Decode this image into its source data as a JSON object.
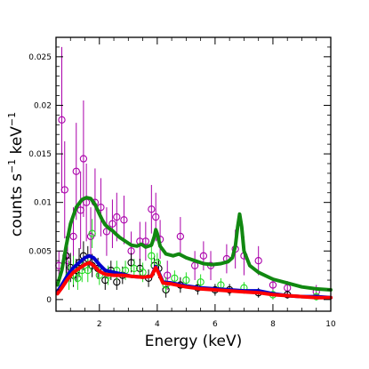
{
  "chart_data": {
    "type": "scatter",
    "title": "",
    "xlabel": "Energy (keV)",
    "ylabel": {
      "base": "counts s",
      "exp1": "−1",
      "mid": " keV",
      "exp2": "−1"
    },
    "xlim": [
      0.5,
      10
    ],
    "ylim": [
      -0.0012,
      0.027
    ],
    "x_ticks": [
      {
        "value": 2,
        "label": "2"
      },
      {
        "value": 4,
        "label": "4"
      },
      {
        "value": 6,
        "label": "6"
      },
      {
        "value": 8,
        "label": "8"
      },
      {
        "value": 10,
        "label": "10"
      }
    ],
    "y_ticks": [
      {
        "value": 0,
        "label": "0"
      },
      {
        "value": 0.005,
        "label": "0.005"
      },
      {
        "value": 0.01,
        "label": "0.01"
      },
      {
        "value": 0.015,
        "label": "0.015"
      },
      {
        "value": 0.02,
        "label": "0.02"
      },
      {
        "value": 0.025,
        "label": "0.025"
      }
    ],
    "grid": false,
    "legend": "none",
    "data_series": [
      {
        "color": "#aa00aa",
        "marker": "open-circle",
        "points": [
          {
            "x": 0.6,
            "y": 0.0035,
            "e": 0.0015
          },
          {
            "x": 0.7,
            "y": 0.0185,
            "e": 0.0075
          },
          {
            "x": 0.8,
            "y": 0.0113,
            "e": 0.005
          },
          {
            "x": 0.9,
            "y": 0.004,
            "e": 0.002
          },
          {
            "x": 1.1,
            "y": 0.0065,
            "e": 0.003
          },
          {
            "x": 1.2,
            "y": 0.0132,
            "e": 0.005
          },
          {
            "x": 1.35,
            "y": 0.0092,
            "e": 0.004
          },
          {
            "x": 1.45,
            "y": 0.0145,
            "e": 0.006
          },
          {
            "x": 1.55,
            "y": 0.01,
            "e": 0.004
          },
          {
            "x": 1.7,
            "y": 0.0065,
            "e": 0.003
          },
          {
            "x": 1.85,
            "y": 0.01,
            "e": 0.0035
          },
          {
            "x": 2.05,
            "y": 0.0095,
            "e": 0.003
          },
          {
            "x": 2.25,
            "y": 0.007,
            "e": 0.0025
          },
          {
            "x": 2.45,
            "y": 0.0078,
            "e": 0.0025
          },
          {
            "x": 2.6,
            "y": 0.0085,
            "e": 0.0025
          },
          {
            "x": 2.85,
            "y": 0.0082,
            "e": 0.0025
          },
          {
            "x": 3.1,
            "y": 0.005,
            "e": 0.002
          },
          {
            "x": 3.4,
            "y": 0.006,
            "e": 0.002
          },
          {
            "x": 3.6,
            "y": 0.006,
            "e": 0.002
          },
          {
            "x": 3.8,
            "y": 0.0093,
            "e": 0.0025
          },
          {
            "x": 3.95,
            "y": 0.0085,
            "e": 0.0025
          },
          {
            "x": 4.1,
            "y": 0.0062,
            "e": 0.002
          },
          {
            "x": 4.35,
            "y": 0.0025,
            "e": 0.0015
          },
          {
            "x": 4.8,
            "y": 0.0065,
            "e": 0.002
          },
          {
            "x": 5.3,
            "y": 0.0035,
            "e": 0.0015
          },
          {
            "x": 5.6,
            "y": 0.0045,
            "e": 0.0015
          },
          {
            "x": 5.85,
            "y": 0.0035,
            "e": 0.0015
          },
          {
            "x": 6.4,
            "y": 0.0042,
            "e": 0.0015
          },
          {
            "x": 6.7,
            "y": 0.0052,
            "e": 0.002
          },
          {
            "x": 7.0,
            "y": 0.0045,
            "e": 0.002
          },
          {
            "x": 7.5,
            "y": 0.004,
            "e": 0.0015
          },
          {
            "x": 8.0,
            "y": 0.0015,
            "e": 0.0008
          },
          {
            "x": 8.5,
            "y": 0.0012,
            "e": 0.0007
          },
          {
            "x": 9.5,
            "y": 0.0008,
            "e": 0.0007
          }
        ]
      },
      {
        "color": "#000000",
        "marker": "open-circle",
        "points": [
          {
            "x": 0.85,
            "y": 0.0045,
            "e": 0.002
          },
          {
            "x": 1.0,
            "y": 0.0033,
            "e": 0.0015
          },
          {
            "x": 1.1,
            "y": 0.0025,
            "e": 0.0012
          },
          {
            "x": 1.2,
            "y": 0.003,
            "e": 0.0012
          },
          {
            "x": 1.3,
            "y": 0.0038,
            "e": 0.0015
          },
          {
            "x": 1.45,
            "y": 0.0045,
            "e": 0.0015
          },
          {
            "x": 1.6,
            "y": 0.0042,
            "e": 0.0013
          },
          {
            "x": 1.75,
            "y": 0.0035,
            "e": 0.0012
          },
          {
            "x": 1.95,
            "y": 0.0032,
            "e": 0.0011
          },
          {
            "x": 2.2,
            "y": 0.002,
            "e": 0.001
          },
          {
            "x": 2.4,
            "y": 0.003,
            "e": 0.001
          },
          {
            "x": 2.6,
            "y": 0.0018,
            "e": 0.0008
          },
          {
            "x": 2.8,
            "y": 0.0025,
            "e": 0.0009
          },
          {
            "x": 3.1,
            "y": 0.0038,
            "e": 0.001
          },
          {
            "x": 3.4,
            "y": 0.0032,
            "e": 0.001
          },
          {
            "x": 3.7,
            "y": 0.0022,
            "e": 0.0009
          },
          {
            "x": 3.9,
            "y": 0.0035,
            "e": 0.001
          },
          {
            "x": 4.05,
            "y": 0.0032,
            "e": 0.001
          },
          {
            "x": 4.3,
            "y": 0.001,
            "e": 0.0008
          },
          {
            "x": 4.8,
            "y": 0.0015,
            "e": 0.0008
          },
          {
            "x": 5.4,
            "y": 0.0012,
            "e": 0.0007
          },
          {
            "x": 6.0,
            "y": 0.001,
            "e": 0.0006
          },
          {
            "x": 6.5,
            "y": 0.001,
            "e": 0.0006
          },
          {
            "x": 7.5,
            "y": 0.0007,
            "e": 0.0005
          },
          {
            "x": 8.5,
            "y": 0.0005,
            "e": 0.0004
          }
        ]
      },
      {
        "color": "#22dd22",
        "marker": "open-circle",
        "points": [
          {
            "x": 0.95,
            "y": 0.0025,
            "e": 0.0015
          },
          {
            "x": 1.1,
            "y": 0.003,
            "e": 0.0015
          },
          {
            "x": 1.25,
            "y": 0.0022,
            "e": 0.0012
          },
          {
            "x": 1.4,
            "y": 0.003,
            "e": 0.0012
          },
          {
            "x": 1.6,
            "y": 0.003,
            "e": 0.0012
          },
          {
            "x": 1.75,
            "y": 0.0068,
            "e": 0.0015
          },
          {
            "x": 2.0,
            "y": 0.0025,
            "e": 0.001
          },
          {
            "x": 2.3,
            "y": 0.0025,
            "e": 0.001
          },
          {
            "x": 2.6,
            "y": 0.003,
            "e": 0.001
          },
          {
            "x": 2.9,
            "y": 0.003,
            "e": 0.001
          },
          {
            "x": 3.2,
            "y": 0.0032,
            "e": 0.001
          },
          {
            "x": 3.5,
            "y": 0.0028,
            "e": 0.001
          },
          {
            "x": 3.8,
            "y": 0.0045,
            "e": 0.0012
          },
          {
            "x": 4.0,
            "y": 0.0038,
            "e": 0.001
          },
          {
            "x": 4.3,
            "y": 0.0015,
            "e": 0.0008
          },
          {
            "x": 4.6,
            "y": 0.0022,
            "e": 0.0008
          },
          {
            "x": 5.0,
            "y": 0.002,
            "e": 0.0008
          },
          {
            "x": 5.5,
            "y": 0.0018,
            "e": 0.0008
          },
          {
            "x": 6.2,
            "y": 0.0015,
            "e": 0.0007
          },
          {
            "x": 7.0,
            "y": 0.0012,
            "e": 0.0006
          },
          {
            "x": 8.0,
            "y": 0.0005,
            "e": 0.0005
          },
          {
            "x": 9.5,
            "y": 0.0003,
            "e": 0.0004
          }
        ]
      }
    ],
    "model_curves": [
      {
        "color": "#0000cc",
        "points": [
          [
            0.55,
            0.0008
          ],
          [
            0.7,
            0.0015
          ],
          [
            0.9,
            0.0025
          ],
          [
            1.1,
            0.0033
          ],
          [
            1.3,
            0.0038
          ],
          [
            1.5,
            0.0043
          ],
          [
            1.65,
            0.0045
          ],
          [
            1.8,
            0.0043
          ],
          [
            2.0,
            0.0036
          ],
          [
            2.2,
            0.003
          ],
          [
            2.5,
            0.0028
          ],
          [
            2.8,
            0.0026
          ],
          [
            3.1,
            0.0024
          ],
          [
            3.5,
            0.0023
          ],
          [
            3.8,
            0.0024
          ],
          [
            3.95,
            0.0034
          ],
          [
            4.05,
            0.0028
          ],
          [
            4.2,
            0.0018
          ],
          [
            4.5,
            0.0017
          ],
          [
            5.0,
            0.0014
          ],
          [
            5.5,
            0.0012
          ],
          [
            6.0,
            0.0011
          ],
          [
            6.5,
            0.001
          ],
          [
            7.0,
            0.0009
          ],
          [
            7.5,
            0.0009
          ],
          [
            8.0,
            0.0006
          ],
          [
            8.5,
            0.0004
          ],
          [
            9.0,
            0.0003
          ],
          [
            9.5,
            0.0003
          ],
          [
            10.0,
            0.0002
          ]
        ]
      },
      {
        "color": "#ff0000",
        "points": [
          [
            0.55,
            0.0006
          ],
          [
            0.7,
            0.0012
          ],
          [
            0.9,
            0.0021
          ],
          [
            1.1,
            0.0028
          ],
          [
            1.3,
            0.0032
          ],
          [
            1.5,
            0.0036
          ],
          [
            1.65,
            0.0038
          ],
          [
            1.8,
            0.0035
          ],
          [
            2.0,
            0.0029
          ],
          [
            2.2,
            0.0026
          ],
          [
            2.5,
            0.0025
          ],
          [
            2.8,
            0.0025
          ],
          [
            3.1,
            0.0024
          ],
          [
            3.5,
            0.0023
          ],
          [
            3.8,
            0.0024
          ],
          [
            3.95,
            0.0033
          ],
          [
            4.05,
            0.0027
          ],
          [
            4.2,
            0.0017
          ],
          [
            4.5,
            0.0016
          ],
          [
            5.0,
            0.0013
          ],
          [
            5.5,
            0.0011
          ],
          [
            6.0,
            0.001
          ],
          [
            6.5,
            0.0009
          ],
          [
            7.0,
            0.0008
          ],
          [
            7.5,
            0.0007
          ],
          [
            8.0,
            0.0005
          ],
          [
            8.5,
            0.0004
          ],
          [
            9.0,
            0.0003
          ],
          [
            9.5,
            0.0002
          ],
          [
            10.0,
            0.0002
          ]
        ]
      },
      {
        "color": "#118811",
        "points": [
          [
            0.55,
            0.0015
          ],
          [
            0.7,
            0.003
          ],
          [
            0.85,
            0.0055
          ],
          [
            1.0,
            0.0078
          ],
          [
            1.2,
            0.0095
          ],
          [
            1.4,
            0.0103
          ],
          [
            1.55,
            0.0105
          ],
          [
            1.7,
            0.0104
          ],
          [
            1.85,
            0.0098
          ],
          [
            2.0,
            0.0088
          ],
          [
            2.1,
            0.0082
          ],
          [
            2.2,
            0.0077
          ],
          [
            2.35,
            0.0073
          ],
          [
            2.45,
            0.0071
          ],
          [
            2.55,
            0.0068
          ],
          [
            2.7,
            0.0064
          ],
          [
            2.9,
            0.006
          ],
          [
            3.1,
            0.0056
          ],
          [
            3.3,
            0.0055
          ],
          [
            3.45,
            0.0057
          ],
          [
            3.6,
            0.0054
          ],
          [
            3.8,
            0.0056
          ],
          [
            3.9,
            0.0065
          ],
          [
            3.95,
            0.0072
          ],
          [
            4.0,
            0.0068
          ],
          [
            4.1,
            0.0055
          ],
          [
            4.3,
            0.0047
          ],
          [
            4.55,
            0.0045
          ],
          [
            4.75,
            0.0047
          ],
          [
            5.0,
            0.0043
          ],
          [
            5.3,
            0.004
          ],
          [
            5.6,
            0.0037
          ],
          [
            5.9,
            0.0036
          ],
          [
            6.2,
            0.0037
          ],
          [
            6.45,
            0.0039
          ],
          [
            6.6,
            0.0043
          ],
          [
            6.7,
            0.0055
          ],
          [
            6.78,
            0.0075
          ],
          [
            6.85,
            0.0088
          ],
          [
            6.92,
            0.0075
          ],
          [
            7.0,
            0.005
          ],
          [
            7.2,
            0.0035
          ],
          [
            7.5,
            0.0028
          ],
          [
            8.0,
            0.0021
          ],
          [
            8.5,
            0.0017
          ],
          [
            9.0,
            0.0013
          ],
          [
            9.5,
            0.0011
          ],
          [
            10.0,
            0.001
          ]
        ]
      }
    ]
  }
}
